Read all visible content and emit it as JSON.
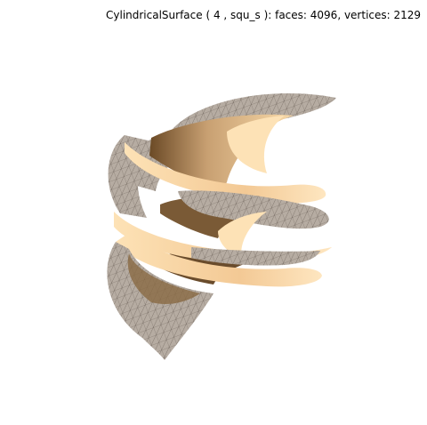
{
  "figure": {
    "title": "CylindricalSurface ( 4 , squ_s ):  faces: 4096,  vertices: 2129"
  },
  "colors": {
    "background": "#ffffff",
    "surface_light": "#fddfb0",
    "surface_mid": "#c8a072",
    "surface_dark": "#5a3d1e",
    "mesh_face": "#b6aca2",
    "mesh_line": "#3a3028"
  }
}
